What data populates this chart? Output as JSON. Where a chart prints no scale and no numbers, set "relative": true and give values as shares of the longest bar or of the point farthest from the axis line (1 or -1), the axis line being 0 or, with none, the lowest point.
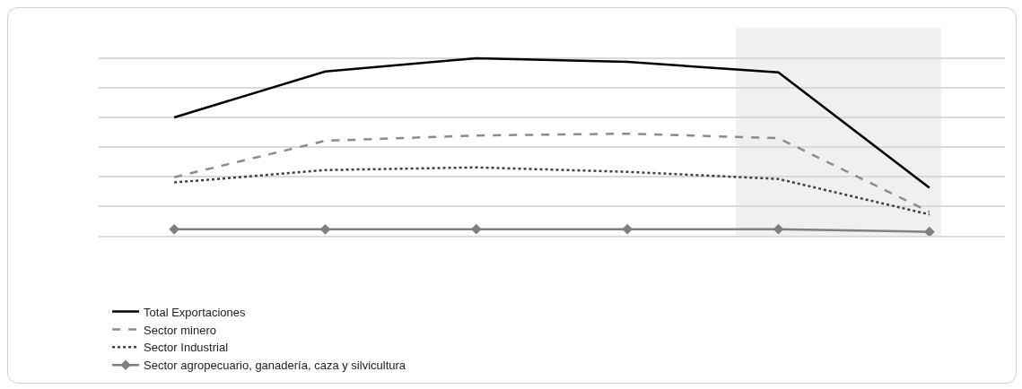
{
  "chart_data": {
    "type": "line",
    "relative": true,
    "categories": [
      null,
      null,
      null,
      null,
      null,
      null
    ],
    "grid": "y",
    "legend": "bottom",
    "series": [
      {
        "name": "Total Exportaciones",
        "color": "#000000",
        "line_style": "solid",
        "marker": "none",
        "values": [
          0.667,
          0.925,
          1,
          0.98,
          0.92,
          0.27
        ]
      },
      {
        "name": "Sector minero",
        "color": "#8c8c8c",
        "line_style": "dashed",
        "marker": "none",
        "values": [
          0.33,
          0.535,
          0.565,
          0.575,
          0.55,
          0.135
        ]
      },
      {
        "name": "Sector Industrial",
        "color": "#404040",
        "line_style": "dotted",
        "marker": "none",
        "values": [
          0.3,
          0.37,
          0.385,
          0.36,
          0.32,
          0.12
        ]
      },
      {
        "name": "Sector agropecuario, ganadería, caza y silvicultura",
        "color": "#808080",
        "line_style": "solid",
        "marker": "diamond",
        "values": [
          0.036,
          0.036,
          0.037,
          0.037,
          0.037,
          0.022
        ]
      }
    ]
  }
}
